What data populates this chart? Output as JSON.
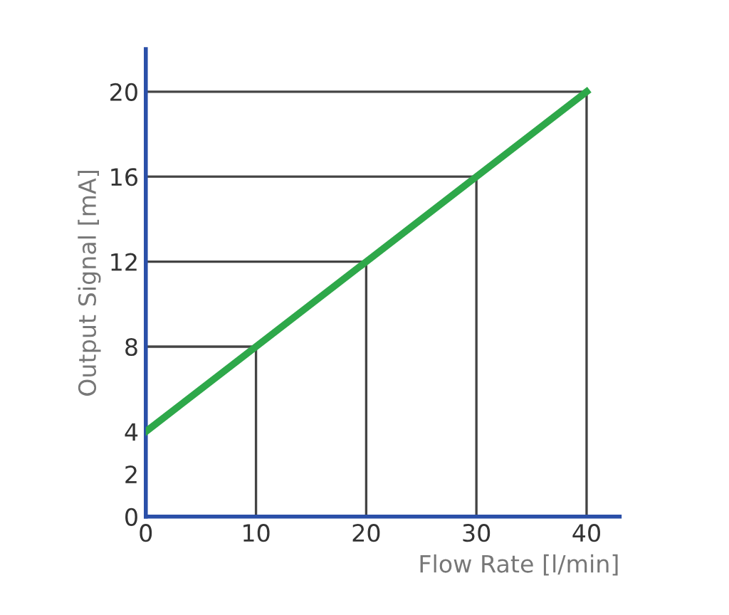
{
  "chart_data": {
    "type": "line",
    "xlabel": "Flow Rate [l/min]",
    "ylabel": "Output Signal [mA]",
    "series": [
      {
        "color": "#2ea84a",
        "x": [
          0,
          40
        ],
        "values": [
          4,
          20
        ]
      },
      {
        "color": "#444444",
        "x": [
          0,
          10,
          10
        ],
        "values": [
          8,
          8,
          0
        ]
      },
      {
        "color": "#444444",
        "x": [
          0,
          20,
          20
        ],
        "values": [
          12,
          12,
          0
        ]
      },
      {
        "color": "#444444",
        "x": [
          0,
          30,
          30
        ],
        "values": [
          16,
          16,
          0
        ]
      },
      {
        "color": "#444444",
        "x": [
          0,
          40,
          40
        ],
        "values": [
          20,
          20,
          0
        ]
      }
    ],
    "xlim": [
      0,
      43
    ],
    "ylim": [
      0,
      22
    ],
    "xticks": [
      0,
      10,
      20,
      30,
      40
    ],
    "yticks": [
      0,
      2,
      4,
      8,
      12,
      16,
      20
    ],
    "grid": false,
    "legend": false
  }
}
